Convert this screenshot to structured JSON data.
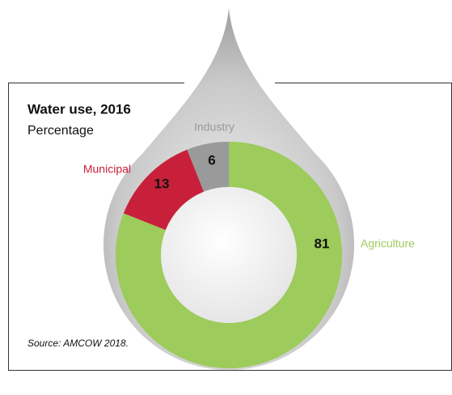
{
  "chart_data": {
    "type": "donut",
    "title": "Water use, 2016",
    "subtitle": "Percentage",
    "categories": [
      "Agriculture",
      "Municipal",
      "Industry"
    ],
    "values": [
      81,
      13,
      6
    ],
    "colors": [
      "#9dcb5c",
      "#c8203a",
      "#9a9a9a"
    ],
    "source": "Source: AMCOW 2018."
  }
}
